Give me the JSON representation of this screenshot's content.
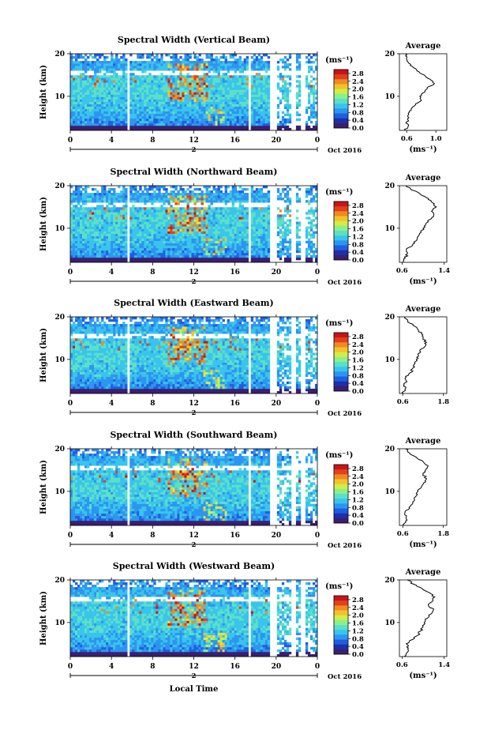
{
  "colors": {
    "colorbar_stops": [
      "#3b1f6e",
      "#1f2fa8",
      "#1e5fe0",
      "#2c95f0",
      "#39c4ec",
      "#5be0c8",
      "#8cf08a",
      "#d2ec4a",
      "#f2c22c",
      "#f08a22",
      "#e0401c",
      "#c8141a"
    ],
    "axis": "#000000",
    "profile_line": "#000000"
  },
  "chart_data": [
    {
      "type": "heatmap",
      "title": "Spectral Width (Vertical Beam)",
      "ylabel": "Height (km)",
      "xlabel": "",
      "x_ticks": [
        "0",
        "4",
        "8",
        "12",
        "16",
        "20",
        "0"
      ],
      "y_ticks": [
        "20",
        "10"
      ],
      "xlim": [
        0,
        24
      ],
      "ylim": [
        2,
        20
      ],
      "date_label": "Oct 2016",
      "day_markers": [
        "2"
      ],
      "colorbar": {
        "unit": "(ms⁻¹)",
        "ticks": [
          "2.8",
          "2.4",
          "2.0",
          "1.6",
          "1.2",
          "0.8",
          "0.4",
          "0.0"
        ],
        "range": [
          0.0,
          3.0
        ]
      },
      "profile": {
        "title": "Average",
        "xlabel": "(ms⁻¹)",
        "x_ticks": [
          "0.6",
          "1.0"
        ],
        "xlim": [
          0.5,
          1.15
        ],
        "y_ticks": [
          "20",
          "10"
        ],
        "heights": [
          2,
          3,
          4,
          5,
          6,
          7,
          8,
          9,
          10,
          11,
          12,
          13,
          14,
          15,
          16,
          17,
          18,
          19,
          20
        ],
        "values": [
          0.58,
          0.62,
          0.6,
          0.63,
          0.62,
          0.66,
          0.72,
          0.8,
          0.78,
          0.85,
          0.88,
          0.98,
          0.92,
          0.84,
          0.74,
          0.68,
          0.62,
          0.6,
          0.58
        ]
      }
    },
    {
      "type": "heatmap",
      "title": "Spectral Width (Northward Beam)",
      "ylabel": "Height (km)",
      "xlabel": "",
      "x_ticks": [
        "0",
        "4",
        "8",
        "12",
        "16",
        "20",
        "0"
      ],
      "y_ticks": [
        "20",
        "10"
      ],
      "xlim": [
        0,
        24
      ],
      "ylim": [
        2,
        20
      ],
      "date_label": "Oct 2016",
      "day_markers": [
        "2"
      ],
      "colorbar": {
        "unit": "(ms⁻¹)",
        "ticks": [
          "2.8",
          "2.4",
          "2.0",
          "1.6",
          "1.2",
          "0.8",
          "0.4",
          "0.0"
        ],
        "range": [
          0.0,
          3.0
        ]
      },
      "profile": {
        "title": "Average",
        "xlabel": "(ms⁻¹)",
        "x_ticks": [
          "0.6",
          "1.4"
        ],
        "xlim": [
          0.55,
          1.45
        ],
        "y_ticks": [
          "20",
          "10"
        ],
        "heights": [
          2,
          3,
          4,
          5,
          6,
          7,
          8,
          9,
          10,
          11,
          12,
          13,
          14,
          15,
          16,
          17,
          18,
          19,
          20
        ],
        "values": [
          0.62,
          0.66,
          0.7,
          0.68,
          0.8,
          0.86,
          0.9,
          0.96,
          1.0,
          1.05,
          1.12,
          1.2,
          1.16,
          1.25,
          1.18,
          1.1,
          0.95,
          0.78,
          0.68
        ]
      }
    },
    {
      "type": "heatmap",
      "title": "Spectral Width (Eastward Beam)",
      "ylabel": "Height (km)",
      "xlabel": "",
      "x_ticks": [
        "0",
        "4",
        "8",
        "12",
        "16",
        "20",
        "0"
      ],
      "y_ticks": [
        "20",
        "10"
      ],
      "xlim": [
        0,
        24
      ],
      "ylim": [
        2,
        20
      ],
      "date_label": "Oct 2016",
      "day_markers": [
        "2"
      ],
      "colorbar": {
        "unit": "(ms⁻¹)",
        "ticks": [
          "2.8",
          "2.4",
          "2.0",
          "1.6",
          "1.2",
          "0.8",
          "0.4",
          "0.0"
        ],
        "range": [
          0.0,
          3.0
        ]
      },
      "profile": {
        "title": "Average",
        "xlabel": "",
        "x_ticks": [
          "0.6",
          "1.8"
        ],
        "xlim": [
          0.5,
          1.9
        ],
        "y_ticks": [
          "20",
          "10"
        ],
        "heights": [
          2,
          3,
          4,
          5,
          6,
          7,
          8,
          9,
          10,
          11,
          12,
          13,
          14,
          15,
          16,
          17,
          18,
          19,
          20
        ],
        "values": [
          0.6,
          0.66,
          0.64,
          0.7,
          0.68,
          0.85,
          0.9,
          0.96,
          1.0,
          1.06,
          1.1,
          1.25,
          1.3,
          1.2,
          1.15,
          1.05,
          0.9,
          0.75,
          0.66
        ]
      }
    },
    {
      "type": "heatmap",
      "title": "Spectral Width (Southward Beam)",
      "ylabel": "Height (km)",
      "xlabel": "",
      "x_ticks": [
        "0",
        "4",
        "8",
        "12",
        "16",
        "20",
        "0"
      ],
      "y_ticks": [
        "20",
        "10"
      ],
      "xlim": [
        0,
        24
      ],
      "ylim": [
        2,
        20
      ],
      "date_label": "Oct 2016",
      "day_markers": [
        "2"
      ],
      "colorbar": {
        "unit": "(ms⁻¹)",
        "ticks": [
          "2.8",
          "2.4",
          "2.0",
          "1.6",
          "1.2",
          "0.8",
          "0.4",
          "0.0"
        ],
        "range": [
          0.0,
          3.0
        ]
      },
      "profile": {
        "title": "Average",
        "xlabel": "(ms⁻¹)",
        "x_ticks": [
          "0.6",
          "1.8"
        ],
        "xlim": [
          0.5,
          1.9
        ],
        "y_ticks": [
          "20",
          "10"
        ],
        "heights": [
          2,
          3,
          4,
          5,
          6,
          7,
          8,
          9,
          10,
          11,
          12,
          13,
          14,
          15,
          16,
          17,
          18,
          19,
          20
        ],
        "values": [
          0.62,
          0.68,
          0.7,
          0.66,
          0.8,
          0.88,
          0.95,
          1.0,
          1.05,
          1.15,
          1.22,
          1.3,
          1.2,
          1.28,
          1.35,
          1.2,
          1.0,
          0.8,
          0.68
        ]
      }
    },
    {
      "type": "heatmap",
      "title": "Spectral Width (Westward Beam)",
      "ylabel": "Height (km)",
      "xlabel": "Local Time",
      "x_ticks": [
        "0",
        "4",
        "8",
        "12",
        "16",
        "20",
        "0"
      ],
      "y_ticks": [
        "20",
        "10"
      ],
      "xlim": [
        0,
        24
      ],
      "ylim": [
        2,
        20
      ],
      "date_label": "Oct 2016",
      "day_markers": [
        "2"
      ],
      "colorbar": {
        "unit": "(ms⁻¹)",
        "ticks": [
          "2.8",
          "2.4",
          "2.0",
          "1.6",
          "1.2",
          "0.8",
          "0.4",
          "0.0"
        ],
        "range": [
          0.0,
          3.0
        ]
      },
      "profile": {
        "title": "Average",
        "xlabel": "(ms⁻¹)",
        "x_ticks": [
          "0.6",
          "1.4"
        ],
        "xlim": [
          0.55,
          1.45
        ],
        "y_ticks": [
          "20",
          "10"
        ],
        "heights": [
          2,
          3,
          4,
          5,
          6,
          7,
          8,
          9,
          10,
          11,
          12,
          13,
          14,
          15,
          16,
          17,
          18,
          19,
          20
        ],
        "values": [
          0.64,
          0.7,
          0.72,
          0.68,
          0.8,
          0.9,
          0.95,
          1.0,
          1.02,
          1.08,
          1.15,
          1.2,
          1.1,
          1.18,
          1.22,
          1.12,
          0.98,
          0.82,
          0.7
        ]
      }
    }
  ]
}
